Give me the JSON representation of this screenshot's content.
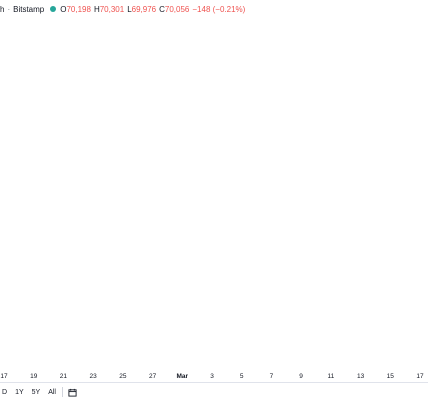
{
  "header": {
    "pair": "h",
    "separator": "·",
    "exchange": "Bitstamp",
    "status_color": "#26a69a",
    "ohlc": [
      {
        "key": "O",
        "value": "70,198"
      },
      {
        "key": "H",
        "value": "70,301"
      },
      {
        "key": "L",
        "value": "69,976"
      },
      {
        "key": "C",
        "value": "70,056"
      }
    ],
    "change": "−148 (−0.21%)"
  },
  "bottom_bar": {
    "ranges": [
      "D",
      "1Y",
      "5Y",
      "All"
    ],
    "calendar_icon": "calendar-icon"
  },
  "colors": {
    "up": "#26a69a",
    "down": "#ef5350",
    "up_volume": "#b2dfdb",
    "down_volume": "#f7b7b5",
    "price_line": "#ef5350"
  },
  "chart_data": {
    "type": "candlestick",
    "title": "",
    "xlabel": "",
    "ylabel": "",
    "x_tick_labels": [
      "17",
      "19",
      "21",
      "23",
      "25",
      "27",
      "Mar",
      "3",
      "5",
      "7",
      "9",
      "11",
      "13",
      "15",
      "17"
    ],
    "price_line": "dashed horizontal line at last price",
    "grid": false,
    "candles": [],
    "volume": []
  }
}
